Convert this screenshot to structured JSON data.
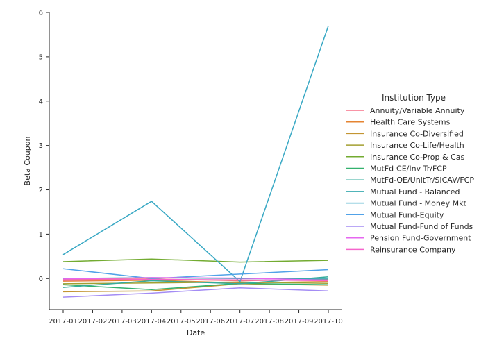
{
  "chart_data": {
    "type": "line",
    "xlabel": "Date",
    "ylabel": "Beta Coupon",
    "x_ticks": [
      "2017-01",
      "2017-02",
      "2017-03",
      "2017-04",
      "2017-05",
      "2017-06",
      "2017-07",
      "2017-08",
      "2017-09",
      "2017-10"
    ],
    "y_ticks": [
      "0",
      "1",
      "2",
      "3",
      "4",
      "5",
      "6"
    ],
    "xlim": [
      "2017-01",
      "2017-10"
    ],
    "ylim": [
      -0.7,
      6
    ],
    "x": [
      "2017-01",
      "2017-04",
      "2017-07",
      "2017-10"
    ],
    "grid": false,
    "legend_position": "right",
    "legend_title": "Institution Type",
    "series": [
      {
        "name": "Annuity/Variable Annuity",
        "color": "#f77189",
        "values": [
          -0.02,
          -0.01,
          -0.05,
          -0.02
        ]
      },
      {
        "name": "Health Care Systems",
        "color": "#e58432",
        "values": [
          -0.06,
          -0.04,
          -0.1,
          -0.07
        ]
      },
      {
        "name": "Insurance Co-Diversified",
        "color": "#c39532",
        "values": [
          -0.3,
          -0.28,
          -0.12,
          -0.15
        ]
      },
      {
        "name": "Insurance Co-Life/Health",
        "color": "#a39f31",
        "values": [
          -0.12,
          -0.1,
          -0.08,
          -0.11
        ]
      },
      {
        "name": "Insurance Co-Prop & Cas",
        "color": "#73ab31",
        "values": [
          0.38,
          0.44,
          0.37,
          0.41
        ]
      },
      {
        "name": "MutFd-CE/Inv Tr/FCP",
        "color": "#33b16e",
        "values": [
          -0.14,
          -0.25,
          -0.11,
          -0.14
        ]
      },
      {
        "name": "MutFd-OE/UnitTr/SICAV/FCP",
        "color": "#35ac9c",
        "values": [
          -0.2,
          -0.05,
          -0.12,
          0.04
        ]
      },
      {
        "name": "Mutual Fund - Balanced",
        "color": "#37aaaf",
        "values": [
          0.0,
          0.02,
          0.0,
          -0.01
        ]
      },
      {
        "name": "Mutual Fund - Money Mkt",
        "color": "#38a8c4",
        "values": [
          0.54,
          1.74,
          -0.07,
          5.7
        ]
      },
      {
        "name": "Mutual Fund-Equity",
        "color": "#51a2e8",
        "values": [
          0.22,
          0.0,
          0.1,
          0.2
        ]
      },
      {
        "name": "Mutual Fund-Fund of Funds",
        "color": "#a48cf4",
        "values": [
          -0.42,
          -0.33,
          -0.21,
          -0.28
        ]
      },
      {
        "name": "Pension Fund-Government",
        "color": "#e667f0",
        "values": [
          -0.01,
          0.02,
          0.01,
          -0.04
        ]
      },
      {
        "name": "Reinsurance Company",
        "color": "#f565cc",
        "values": [
          -0.04,
          -0.02,
          -0.03,
          -0.05
        ]
      }
    ]
  }
}
